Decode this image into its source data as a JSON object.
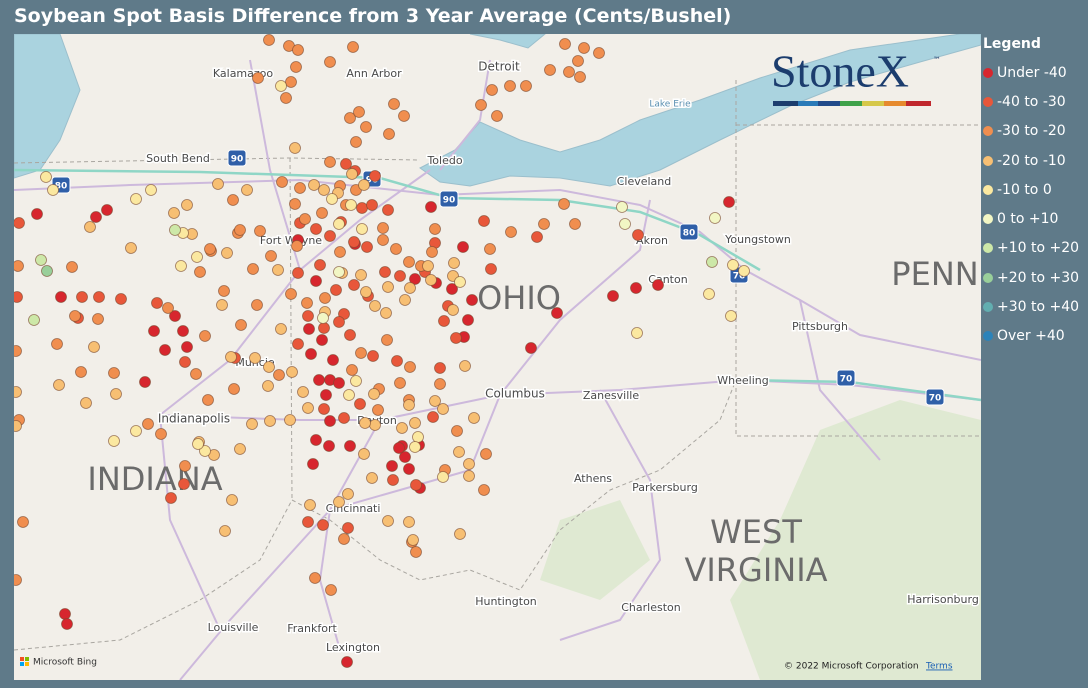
{
  "title": "Soybean Spot Basis Difference from 3 Year Average (Cents/Bushel)",
  "legend": {
    "title": "Legend",
    "items": [
      {
        "label": "Under -40",
        "color": "#d7262e"
      },
      {
        "label": "-40 to -30",
        "color": "#e8573a"
      },
      {
        "label": "-30 to -20",
        "color": "#f08e4f"
      },
      {
        "label": "-20 to -10",
        "color": "#f7bf73"
      },
      {
        "label": "-10 to 0",
        "color": "#fbe8a0"
      },
      {
        "label": "0 to +10",
        "color": "#f2f6c4"
      },
      {
        "label": "+10 to +20",
        "color": "#cde8a8"
      },
      {
        "label": "+20 to +30",
        "color": "#99cf9a"
      },
      {
        "label": "+30 to +40",
        "color": "#62aeb0"
      },
      {
        "label": "Over +40",
        "color": "#2b83ba"
      }
    ]
  },
  "map": {
    "labels": [
      "Kalamazoo",
      "Ann Arbor",
      "Detroit",
      "Lake Erie",
      "South Bend",
      "Toledo",
      "Cleveland",
      "Fort Wayne",
      "Akron",
      "Youngstown",
      "Canton",
      "OHIO",
      "PENN",
      "Pittsburgh",
      "Muncie",
      "Wheeling",
      "Columbus",
      "Zanesville",
      "Indianapolis",
      "Dayton",
      "INDIANA",
      "Athens",
      "Parkersburg",
      "WEST",
      "VIRGINIA",
      "Cincinnati",
      "Huntington",
      "Charleston",
      "Harrisonburg",
      "Louisville",
      "Frankfort",
      "Lexington"
    ],
    "shields": [
      "90",
      "80",
      "90",
      "90",
      "80",
      "76",
      "70",
      "70"
    ]
  },
  "logo": {
    "name": "StoneX",
    "mark": "™"
  },
  "attribution": {
    "bing": "Microsoft Bing",
    "copyright": "© 2022 Microsoft Corporation",
    "terms": "Terms"
  }
}
